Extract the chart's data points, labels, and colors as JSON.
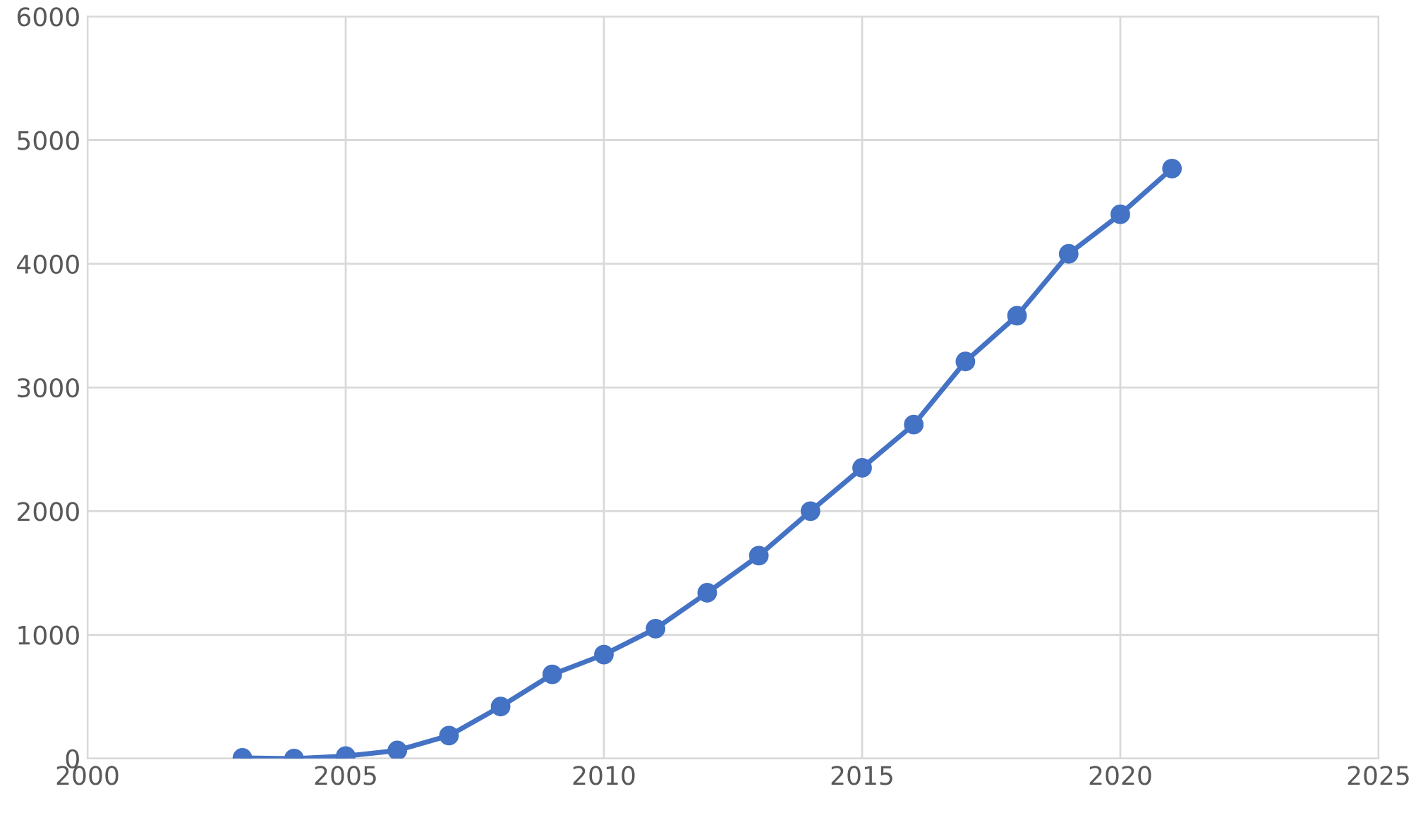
{
  "chart_data": {
    "type": "line",
    "x": [
      2003,
      2004,
      2005,
      2006,
      2007,
      2008,
      2009,
      2010,
      2011,
      2012,
      2013,
      2014,
      2015,
      2016,
      2017,
      2018,
      2019,
      2020,
      2021
    ],
    "series": [
      {
        "color": "#4472c4",
        "values": [
          5,
          0,
          20,
          65,
          185,
          420,
          680,
          840,
          1050,
          1340,
          1640,
          2000,
          2350,
          2700,
          3210,
          3580,
          4080,
          4400,
          4770
        ]
      }
    ],
    "xlim": [
      2000,
      2025
    ],
    "xticks": [
      2000,
      2005,
      2010,
      2015,
      2020,
      2025
    ],
    "ylim": [
      0,
      6000
    ],
    "yticks": [
      0,
      1000,
      2000,
      3000,
      4000,
      5000,
      6000
    ],
    "grid": true,
    "marker": "circle",
    "line_style": "solid"
  }
}
